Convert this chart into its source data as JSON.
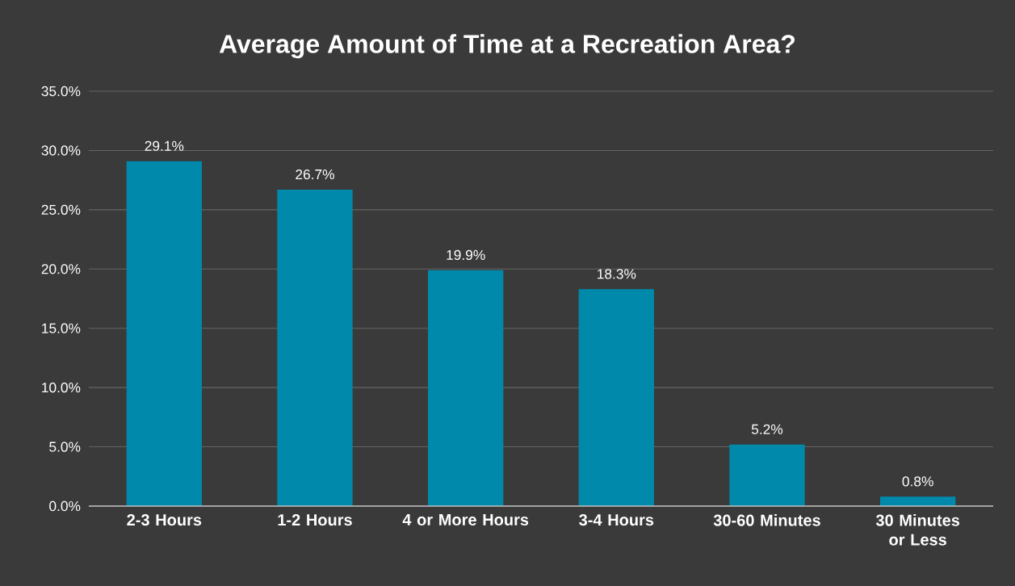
{
  "chart_data": {
    "type": "bar",
    "title": "Average Amount of Time at a Recreation Area?",
    "categories": [
      "2-3 Hours",
      "1-2 Hours",
      "4 or More Hours",
      "3-4 Hours",
      "30-60 Minutes",
      "30 Minutes or Less"
    ],
    "values": [
      29.1,
      26.7,
      19.9,
      18.3,
      5.2,
      0.8
    ],
    "value_labels": [
      "29.1%",
      "26.7%",
      "19.9%",
      "18.3%",
      "5.2%",
      "0.8%"
    ],
    "color": "#0089ab",
    "ylim": [
      0,
      35
    ],
    "yticks": [
      {
        "value": 0,
        "label": "0.0%"
      },
      {
        "value": 5,
        "label": "5.0%"
      },
      {
        "value": 10,
        "label": "10.0%"
      },
      {
        "value": 15,
        "label": "15.0%"
      },
      {
        "value": 20,
        "label": "20.0%"
      },
      {
        "value": 25,
        "label": "25.0%"
      },
      {
        "value": 30,
        "label": "30.0%"
      },
      {
        "value": 35,
        "label": "35.0%"
      }
    ],
    "grid": "y"
  }
}
